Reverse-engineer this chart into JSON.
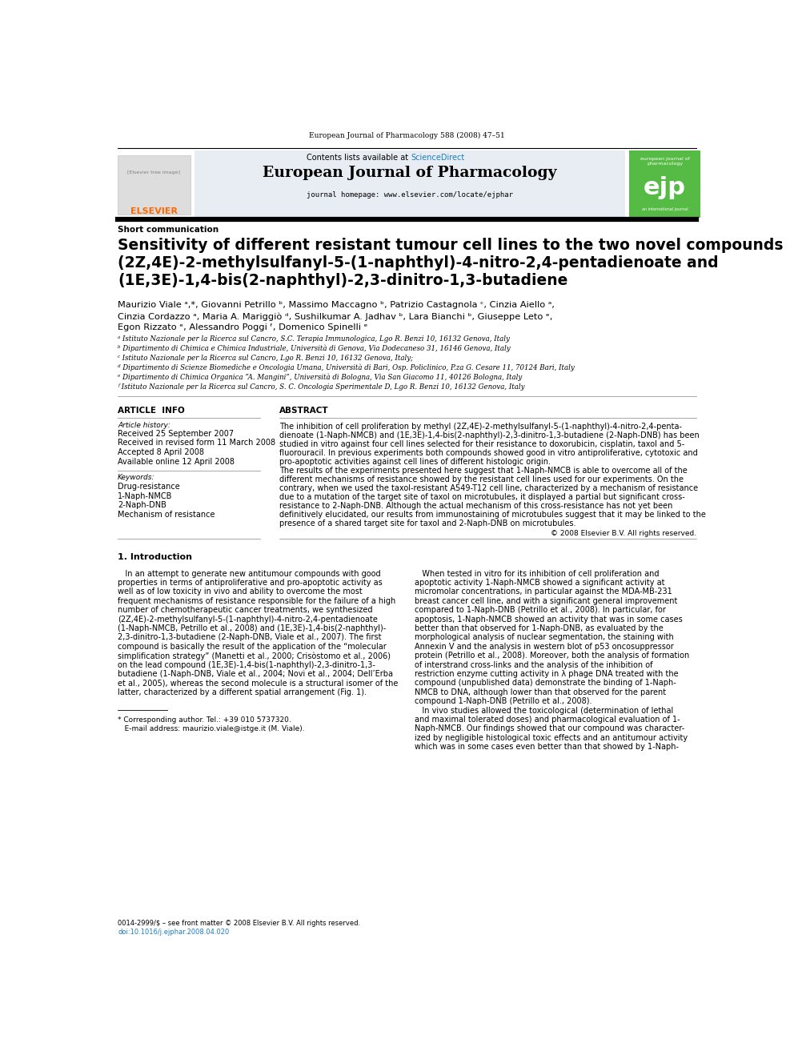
{
  "page_width": 9.92,
  "page_height": 13.23,
  "background_color": "#ffffff",
  "header_line_color": "#000000",
  "journal_name": "European Journal of Pharmacology",
  "journal_homepage": "journal homepage: www.elsevier.com/locate/ejphar",
  "contents_line": "Contents lists available at ScienceDirect",
  "volume_info": "European Journal of Pharmacology 588 (2008) 47–51",
  "article_type": "Short communication",
  "title": "Sensitivity of different resistant tumour cell lines to the two novel compounds\n(2Z,4E)-2-methylsulfanyl-5-(1-naphthyl)-4-nitro-2,4-pentadienoate and\n(1E,3E)-1,4-bis(2-naphthyl)-2,3-dinitro-1,3-butadiene",
  "affiliations": [
    "ᵃ Istituto Nazionale per la Ricerca sul Cancro, S.C. Terapia Immunologica, Lgo R. Benzi 10, 16132 Genova, Italy",
    "ᵇ Dipartimento di Chimica e Chimica Industriale, Università di Genova, Via Dodecaneso 31, 16146 Genova, Italy",
    "ᶜ Istituto Nazionale per la Ricerca sul Cancro, Lgo R. Benzi 10, 16132 Genova, Italy;",
    "ᵈ Dipartimento di Scienze Biomediche e Oncologia Umana, Università di Bari, Osp. Policlinico, P.za G. Cesare 11, 70124 Bari, Italy",
    "ᵉ Dipartimento di Chimica Organica “A. Mangini”, Università di Bologna, Via San Giacomo 11, 40126 Bologna, Italy",
    "ᶠ Istituto Nazionale per la Ricerca sul Cancro, S. C. Oncologia Sperimentale D, Lgo R. Benzi 10, 16132 Genova, Italy"
  ],
  "article_info_label": "ARTICLE  INFO",
  "abstract_label": "ABSTRACT",
  "article_history_label": "Article history:",
  "article_history": [
    "Received 25 September 2007",
    "Received in revised form 11 March 2008",
    "Accepted 8 April 2008",
    "Available online 12 April 2008"
  ],
  "keywords_label": "Keywords:",
  "keywords": [
    "Drug-resistance",
    "1-Naph-NMCB",
    "2-Naph-DNB",
    "Mechanism of resistance"
  ],
  "abstract_text": "The inhibition of cell proliferation by methyl (2Z,4E)-2-methylsulfanyl-5-(1-naphthyl)-4-nitro-2,4-penta-\ndienoate (1-Naph-NMCB) and (1E,3E)-1,4-bis(2-naphthyl)-2,3-dinitro-1,3-butadiene (2-Naph-DNB) has been\nstudied in vitro against four cell lines selected for their resistance to doxorubicin, cisplatin, taxol and 5-\nfluorouracil. In previous experiments both compounds showed good in vitro antiproliferative, cytotoxic and\npro-apoptotic activities against cell lines of different histologic origin.\nThe results of the experiments presented here suggest that 1-Naph-NMCB is able to overcome all of the\ndifferent mechanisms of resistance showed by the resistant cell lines used for our experiments. On the\ncontrary, when we used the taxol-resistant A549-T12 cell line, characterized by a mechanism of resistance\ndue to a mutation of the target site of taxol on microtubules, it displayed a partial but significant cross-\nresistance to 2-Naph-DNB. Although the actual mechanism of this cross-resistance has not yet been\ndefinitively elucidated, our results from immunostaining of microtubules suggest that it may be linked to the\npresence of a shared target site for taxol and 2-Naph-DNB on microtubules.",
  "copyright_line": "© 2008 Elsevier B.V. All rights reserved.",
  "intro_header": "1. Introduction",
  "intro_text_left": "   In an attempt to generate new antitumour compounds with good\nproperties in terms of antiproliferative and pro-apoptotic activity as\nwell as of low toxicity in vivo and ability to overcome the most\nfrequent mechanisms of resistance responsible for the failure of a high\nnumber of chemotherapeutic cancer treatments, we synthesized\n(2Z,4E)-2-methylsulfanyl-5-(1-naphthyl)-4-nitro-2,4-pentadienoate\n(1-Naph-NMCB, Petrillo et al., 2008) and (1E,3E)-1,4-bis(2-naphthyl)-\n2,3-dinitro-1,3-butadiene (2-Naph-DNB, Viale et al., 2007). The first\ncompound is basically the result of the application of the “molecular\nsimplification strategy” (Manetti et al., 2000; Crisòstomo et al., 2006)\non the lead compound (1E,3E)-1,4-bis(1-naphthyl)-2,3-dinitro-1,3-\nbutadiene (1-Naph-DNB, Viale et al., 2004; Novi et al., 2004; Dell’Erba\net al., 2005), whereas the second molecule is a structural isomer of the\nlatter, characterized by a different spatial arrangement (Fig. 1).",
  "intro_text_right": "   When tested in vitro for its inhibition of cell proliferation and\napoptotic activity 1-Naph-NMCB showed a significant activity at\nmicromolar concentrations, in particular against the MDA-MB-231\nbreast cancer cell line, and with a significant general improvement\ncompared to 1-Naph-DNB (Petrillo et al., 2008). In particular, for\napoptosis, 1-Naph-NMCB showed an activity that was in some cases\nbetter than that observed for 1-Naph-DNB, as evaluated by the\nmorphological analysis of nuclear segmentation, the staining with\nAnnexin V and the analysis in western blot of p53 oncosuppressor\nprotein (Petrillo et al., 2008). Moreover, both the analysis of formation\nof interstrand cross-links and the analysis of the inhibition of\nrestriction enzyme cutting activity in λ phage DNA treated with the\ncompound (unpublished data) demonstrate the binding of 1-Naph-\nNMCB to DNA, although lower than that observed for the parent\ncompound 1-Naph-DNB (Petrillo et al., 2008).\n   In vivo studies allowed the toxicological (determination of lethal\nand maximal tolerated doses) and pharmacological evaluation of 1-\nNaph-NMCB. Our findings showed that our compound was character-\nized by negligible histological toxic effects and an antitumour activity\nwhich was in some cases even better than that showed by 1-Naph-",
  "footnote_star": "* Corresponding author. Tel.: +39 010 5737320.",
  "footnote_email": "   E-mail address: maurizio.viale@istge.it (M. Viale).",
  "footnote_bottom_1": "0014-2999/$ – see front matter © 2008 Elsevier B.V. All rights reserved.",
  "footnote_bottom_2": "doi:10.1016/j.ejphar.2008.04.020",
  "elsevier_color": "#ff6600",
  "sciencedirect_color": "#1a7dc2",
  "link_color": "#1a7dc2",
  "header_bg": "#e8edf3",
  "divider_color": "#999999",
  "thick_line_color": "#000000"
}
